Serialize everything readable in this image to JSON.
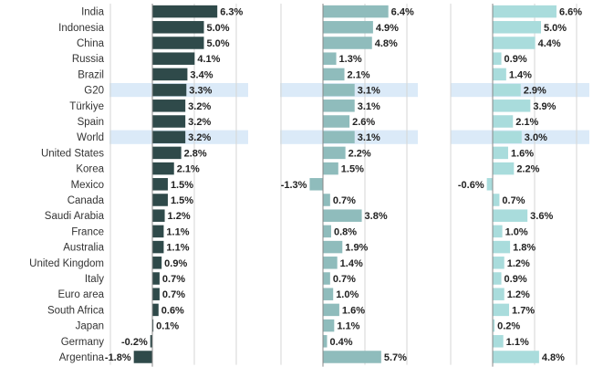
{
  "chart_data": {
    "type": "bar",
    "orientation": "horizontal",
    "grid": true,
    "categories": [
      "India",
      "Indonesia",
      "China",
      "Russia",
      "Brazil",
      "G20",
      "Türkiye",
      "Spain",
      "World",
      "United States",
      "Korea",
      "Mexico",
      "Canada",
      "Saudi Arabia",
      "France",
      "Australia",
      "United Kingdom",
      "Italy",
      "Euro area",
      "South Africa",
      "Japan",
      "Germany",
      "Argentina"
    ],
    "highlighted_categories": [
      "G20",
      "World"
    ],
    "series": [
      {
        "color": "#2f4a4a",
        "values": [
          6.3,
          5.0,
          5.0,
          4.1,
          3.4,
          3.3,
          3.2,
          3.2,
          3.2,
          2.8,
          2.1,
          1.5,
          1.5,
          1.2,
          1.1,
          1.1,
          0.9,
          0.7,
          0.7,
          0.6,
          0.1,
          -0.2,
          -1.8
        ],
        "labels": [
          "6.3%",
          "5.0%",
          "5.0%",
          "4.1%",
          "3.4%",
          "3.3%",
          "3.2%",
          "3.2%",
          "3.2%",
          "2.8%",
          "2.1%",
          "1.5%",
          "1.5%",
          "1.2%",
          "1.1%",
          "1.1%",
          "0.9%",
          "0.7%",
          "0.7%",
          "0.6%",
          "0.1%",
          "-0.2%",
          "-1.8%"
        ]
      },
      {
        "color": "#8fbcbc",
        "values": [
          6.4,
          4.9,
          4.8,
          1.3,
          2.1,
          3.1,
          3.1,
          2.6,
          3.1,
          2.2,
          1.5,
          -1.3,
          0.7,
          3.8,
          0.8,
          1.9,
          1.4,
          0.7,
          1.0,
          1.6,
          1.1,
          0.4,
          5.7
        ],
        "labels": [
          "6.4%",
          "4.9%",
          "4.8%",
          "1.3%",
          "2.1%",
          "3.1%",
          "3.1%",
          "2.6%",
          "3.1%",
          "2.2%",
          "1.5%",
          "-1.3%",
          "0.7%",
          "3.8%",
          "0.8%",
          "1.9%",
          "1.4%",
          "0.7%",
          "1.0%",
          "1.6%",
          "1.1%",
          "0.4%",
          "5.7%"
        ]
      },
      {
        "color": "#a9dcdc",
        "values": [
          6.6,
          5.0,
          4.4,
          0.9,
          1.4,
          2.9,
          3.9,
          2.1,
          3.0,
          1.6,
          2.2,
          -0.6,
          0.7,
          3.6,
          1.0,
          1.8,
          1.2,
          0.9,
          1.2,
          1.7,
          0.2,
          1.1,
          4.8
        ],
        "labels": [
          "6.6%",
          "5.0%",
          "4.4%",
          "0.9%",
          "1.4%",
          "2.9%",
          "3.9%",
          "2.1%",
          "3.0%",
          "1.6%",
          "2.2%",
          "-0.6%",
          "0.7%",
          "3.6%",
          "1.0%",
          "1.8%",
          "1.2%",
          "0.9%",
          "1.2%",
          "1.7%",
          "0.2%",
          "1.1%",
          "4.8%"
        ]
      }
    ]
  },
  "colors": {
    "highlight_band": "#dbeaf8",
    "gridline": "#d5d5d5",
    "zero_axis": "#888888"
  }
}
